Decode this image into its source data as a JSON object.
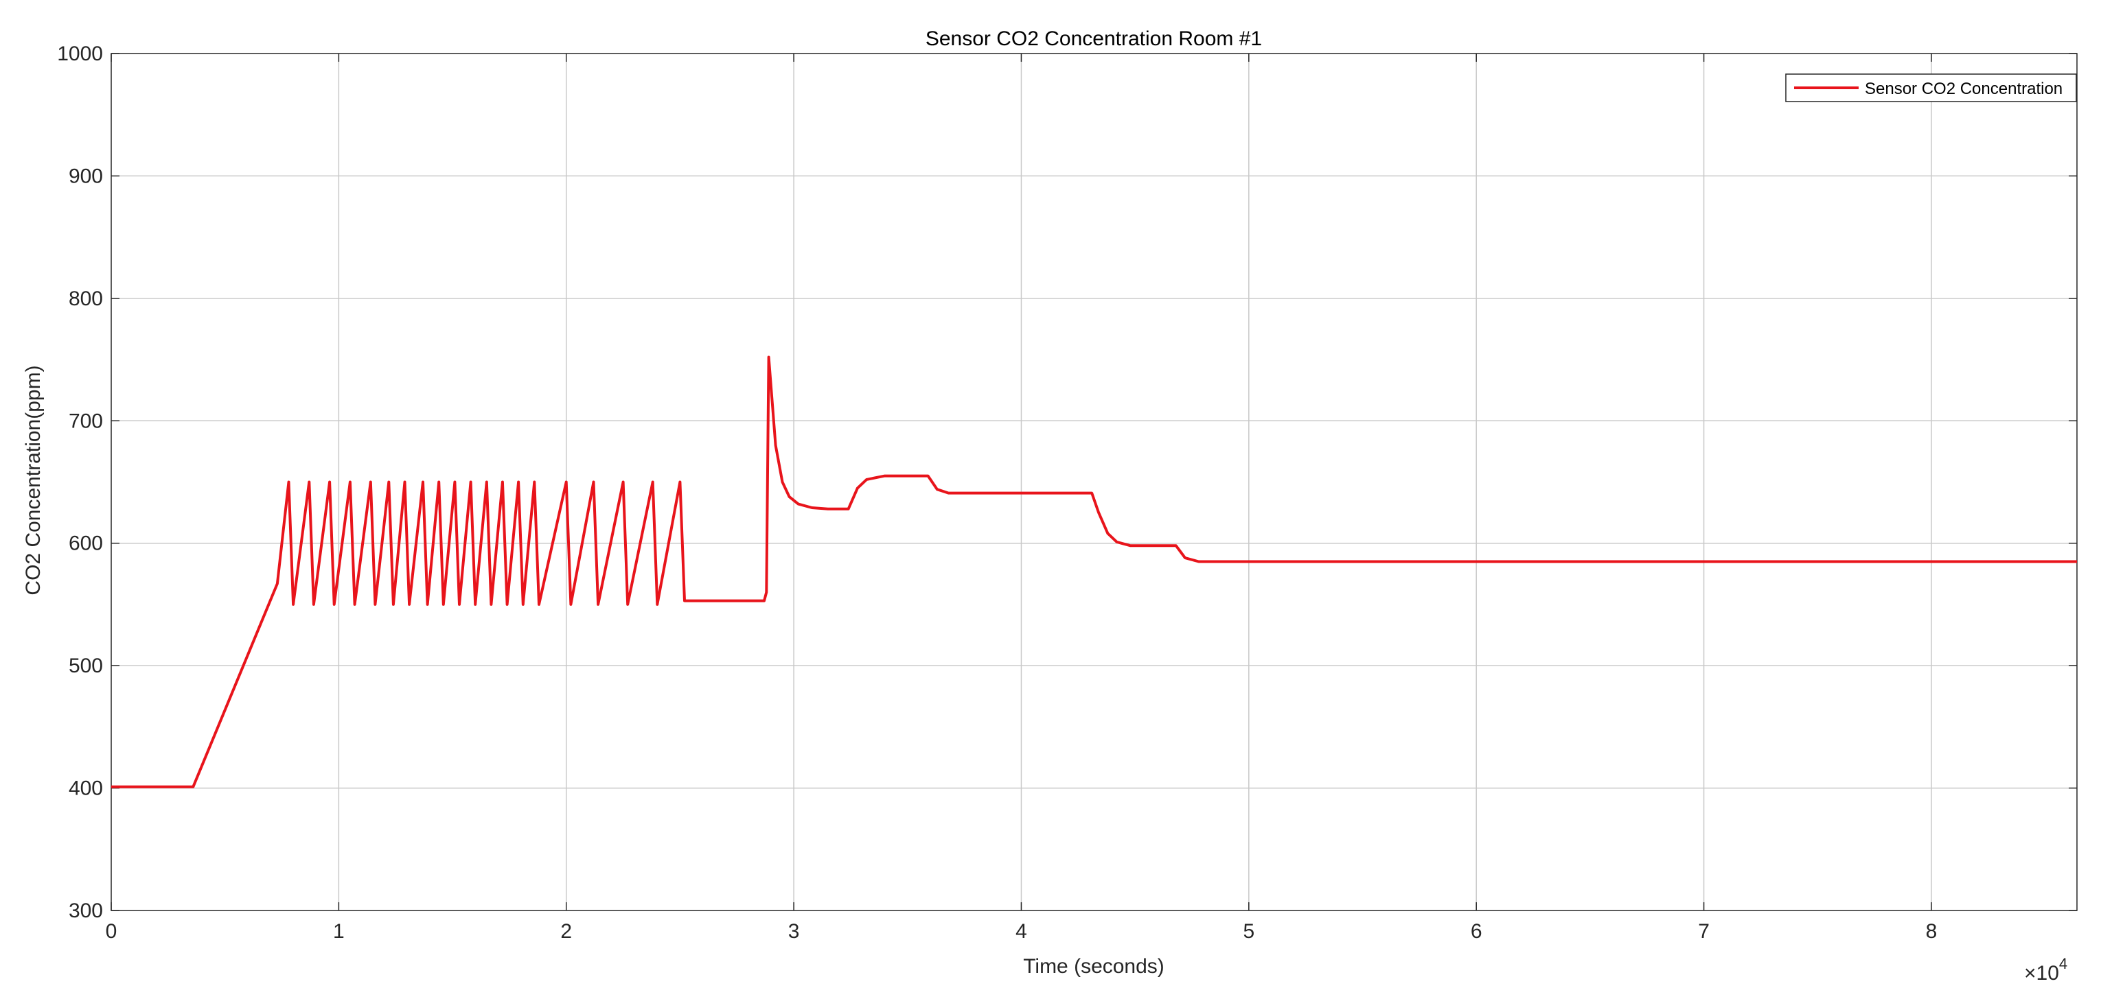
{
  "chart_data": {
    "type": "line",
    "title": "Sensor CO2 Concentration Room #1",
    "xlabel": "Time (seconds)",
    "ylabel": "CO2 Concentration(ppm)",
    "x_exponent_label": "×10",
    "x_exponent_power": "4",
    "xlim": [
      0,
      86400
    ],
    "ylim": [
      300,
      1000
    ],
    "x_ticks": [
      0,
      10000,
      20000,
      30000,
      40000,
      50000,
      60000,
      70000,
      80000
    ],
    "x_tick_labels": [
      "0",
      "1",
      "2",
      "3",
      "4",
      "5",
      "6",
      "7",
      "8"
    ],
    "y_ticks": [
      300,
      400,
      500,
      600,
      700,
      800,
      900,
      1000
    ],
    "y_tick_labels": [
      "300",
      "400",
      "500",
      "600",
      "700",
      "800",
      "900",
      "1000"
    ],
    "grid": true,
    "legend_position": "top-right",
    "series": [
      {
        "name": "Sensor CO2 Concentration",
        "color": "#e8141b",
        "x": [
          0,
          3600,
          7300,
          7800,
          8000,
          8700,
          8900,
          9600,
          9800,
          10500,
          10700,
          11400,
          11600,
          12200,
          12400,
          12900,
          13100,
          13700,
          13900,
          14400,
          14600,
          15100,
          15300,
          15800,
          16000,
          16500,
          16700,
          17200,
          17400,
          17900,
          18100,
          18600,
          18800,
          20000,
          20200,
          21200,
          21400,
          22500,
          22700,
          23800,
          24000,
          25000,
          25200,
          26000,
          28300,
          28700,
          28800,
          28900,
          29200,
          29500,
          29800,
          30200,
          30800,
          31500,
          32200,
          32400,
          32800,
          33200,
          34000,
          35000,
          35900,
          36300,
          36800,
          37500,
          38500,
          40000,
          41500,
          43100,
          43400,
          43800,
          44200,
          44800,
          45500,
          46400,
          46800,
          47200,
          47800,
          50000,
          60000,
          70000,
          80000,
          86400
        ],
        "y": [
          401,
          401,
          567,
          650,
          550,
          650,
          550,
          650,
          550,
          650,
          550,
          650,
          550,
          650,
          550,
          650,
          550,
          650,
          550,
          650,
          550,
          650,
          550,
          650,
          550,
          650,
          550,
          650,
          550,
          650,
          550,
          650,
          550,
          650,
          550,
          650,
          550,
          650,
          550,
          650,
          550,
          650,
          553,
          553,
          553,
          553,
          560,
          752,
          680,
          650,
          638,
          632,
          629,
          628,
          628,
          628,
          645,
          652,
          655,
          655,
          655,
          644,
          641,
          641,
          641,
          641,
          641,
          641,
          625,
          608,
          601,
          598,
          598,
          598,
          598,
          588,
          585,
          585,
          585,
          585,
          585,
          585
        ]
      }
    ]
  }
}
